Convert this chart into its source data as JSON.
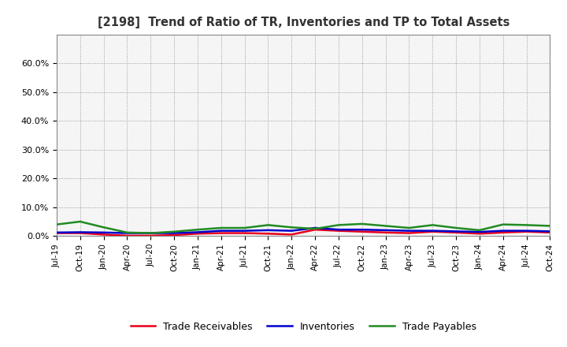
{
  "title": "[2198]  Trend of Ratio of TR, Inventories and TP to Total Assets",
  "x_labels": [
    "Jul-19",
    "Oct-19",
    "Jan-20",
    "Apr-20",
    "Jul-20",
    "Oct-20",
    "Jan-21",
    "Apr-21",
    "Jul-21",
    "Oct-21",
    "Jan-22",
    "Apr-22",
    "Jul-22",
    "Oct-22",
    "Jan-23",
    "Apr-23",
    "Jul-23",
    "Oct-23",
    "Jan-24",
    "Apr-24",
    "Jul-24",
    "Oct-24"
  ],
  "trade_receivables": [
    0.01,
    0.01,
    0.005,
    0.001,
    0.001,
    0.003,
    0.008,
    0.01,
    0.01,
    0.008,
    0.005,
    0.022,
    0.018,
    0.015,
    0.012,
    0.01,
    0.015,
    0.012,
    0.008,
    0.012,
    0.015,
    0.012
  ],
  "inventories": [
    0.012,
    0.013,
    0.012,
    0.01,
    0.01,
    0.01,
    0.013,
    0.018,
    0.018,
    0.02,
    0.018,
    0.028,
    0.022,
    0.022,
    0.02,
    0.018,
    0.018,
    0.016,
    0.014,
    0.018,
    0.018,
    0.016
  ],
  "trade_payables": [
    0.04,
    0.05,
    0.03,
    0.012,
    0.01,
    0.015,
    0.022,
    0.028,
    0.028,
    0.038,
    0.03,
    0.025,
    0.038,
    0.042,
    0.035,
    0.028,
    0.038,
    0.028,
    0.02,
    0.04,
    0.038,
    0.035
  ],
  "color_tr": "#e8001c",
  "color_inv": "#0000cc",
  "color_tp": "#228B22",
  "ylim": [
    0.0,
    0.7
  ],
  "yticks": [
    0.0,
    0.1,
    0.2,
    0.3,
    0.4,
    0.5,
    0.6
  ],
  "background_color": "#ffffff",
  "plot_bg_color": "#f5f5f5",
  "grid_color": "#888888"
}
